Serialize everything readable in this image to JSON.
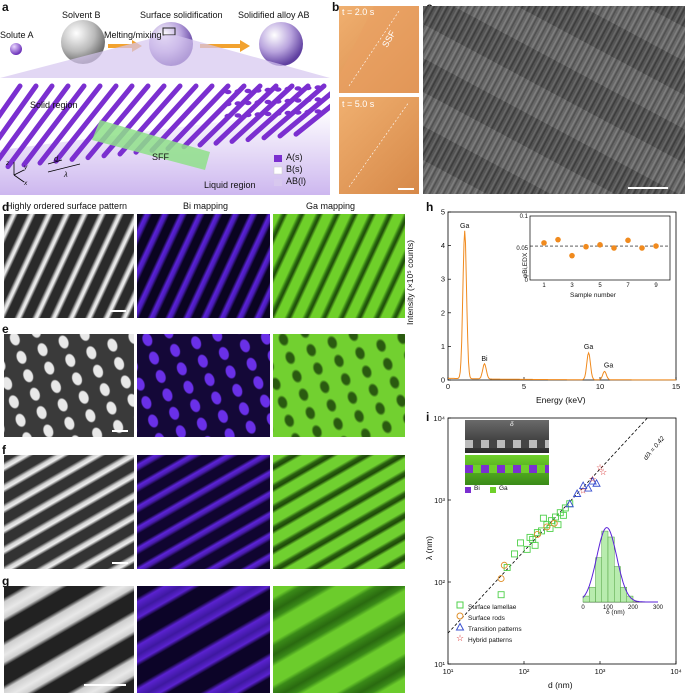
{
  "labels": {
    "a": "a",
    "b": "b",
    "c": "c",
    "d": "d",
    "e": "e",
    "f": "f",
    "g": "g",
    "h": "h",
    "i": "i"
  },
  "panel_a": {
    "solute": "Solute A",
    "solvent": "Solvent B",
    "melting": "Melting/mixing",
    "surface": "Surface solidification",
    "solidified": "Solidified alloy AB",
    "solid_region": "Solid region",
    "sff": "SFF",
    "liquid_region": "Liquid region",
    "legend": [
      "A(s)",
      "B(s)",
      "AB(l)"
    ],
    "d": "d",
    "lambda": "λ",
    "axes": {
      "z": "z",
      "y": "y",
      "x": "x"
    },
    "colors": {
      "purple": "#7b2fd0",
      "liquid": "#d8c8ef",
      "sff": "#8fe08a"
    }
  },
  "panel_b": {
    "t1": "t = 2.0 s",
    "t2": "t = 5.0 s",
    "ssf": "SSF",
    "color": "#e0955a"
  },
  "columns": {
    "col1": "Highly ordered surface pattern",
    "col2": "Bi mapping",
    "col3": "Ga mapping",
    "bi_color": "#5a22d8",
    "ga_color": "#6fd02a"
  },
  "panel_h": {
    "ylabel": "Intensity (×10⁵ counts)",
    "xlabel": "Energy (keV)",
    "peaks": [
      "Ga",
      "Bi",
      "Ga",
      "Ga"
    ],
    "inset_ylabel": "φBi,EDX",
    "inset_xlabel": "Sample number"
  },
  "panel_i": {
    "ylabel": "λ (nm)",
    "xlabel": "d (nm)",
    "ratio": "d/λ = 0.42",
    "bi": "Bi",
    "ga": "Ga",
    "delta": "δ",
    "hist_xlabel": "δ (nm)",
    "legend": [
      "Surface lamellae",
      "Surface rods",
      "Transition patterns",
      "Hybrid patterns"
    ]
  },
  "chart_data": [
    {
      "type": "line",
      "panel": "h",
      "xlabel": "Energy (keV)",
      "ylabel": "Intensity (×10⁵ counts)",
      "xlim": [
        0,
        15
      ],
      "ylim": [
        0,
        5
      ],
      "xticks": [
        0,
        5,
        10,
        15
      ],
      "yticks": [
        0,
        1,
        2,
        3,
        4,
        5
      ],
      "peaks": [
        {
          "label": "Ga",
          "x": 1.1,
          "y": 4.4
        },
        {
          "label": "Bi",
          "x": 2.4,
          "y": 0.45
        },
        {
          "label": "Ga",
          "x": 9.25,
          "y": 0.8
        },
        {
          "label": "Ga",
          "x": 10.3,
          "y": 0.25
        }
      ],
      "inset": {
        "type": "scatter",
        "xlabel": "Sample number",
        "ylabel": "φBi,EDX",
        "xlim": [
          0,
          10
        ],
        "ylim": [
          0,
          0.1
        ],
        "xticks": [
          1,
          3,
          5,
          7,
          9
        ],
        "yticks": [
          0,
          0.05,
          0.1
        ],
        "x": [
          1,
          2,
          3,
          4,
          5,
          6,
          7,
          8,
          9
        ],
        "y": [
          0.058,
          0.063,
          0.038,
          0.052,
          0.055,
          0.05,
          0.062,
          0.05,
          0.053
        ],
        "reference_line": 0.053
      }
    },
    {
      "type": "scatter",
      "panel": "i",
      "xlabel": "d (nm)",
      "ylabel": "λ (nm)",
      "xscale": "log",
      "yscale": "log",
      "xlim": [
        10,
        10000
      ],
      "ylim": [
        10,
        10000
      ],
      "fit": {
        "label": "d/λ = 0.42",
        "slope": 0.42
      },
      "series": [
        {
          "name": "Surface lamellae",
          "marker": "square",
          "color": "#4fd04a",
          "x": [
            50,
            60,
            75,
            90,
            110,
            130,
            150,
            170,
            200,
            230,
            260,
            300,
            350,
            400,
            120,
            180,
            220,
            280,
            330,
            140
          ],
          "y": [
            70,
            150,
            220,
            300,
            250,
            330,
            400,
            420,
            500,
            560,
            620,
            700,
            800,
            900,
            350,
            600,
            450,
            500,
            650,
            280
          ]
        },
        {
          "name": "Surface rods",
          "marker": "circle",
          "color": "#e0902a",
          "x": [
            50,
            55,
            150,
            200,
            250
          ],
          "y": [
            110,
            160,
            380,
            470,
            520
          ]
        },
        {
          "name": "Transition patterns",
          "marker": "triangle",
          "color": "#3a50d0",
          "x": [
            400,
            500,
            600,
            700,
            800,
            900
          ],
          "y": [
            900,
            1200,
            1500,
            1400,
            1700,
            1600
          ]
        },
        {
          "name": "Hybrid patterns",
          "marker": "star",
          "color": "#d83030",
          "x": [
            600,
            800,
            1000,
            1100
          ],
          "y": [
            1300,
            1800,
            2500,
            2200
          ]
        }
      ],
      "hist_inset": {
        "xlabel": "δ (nm)",
        "xticks": [
          0,
          100,
          200,
          300
        ],
        "bins": [
          0,
          25,
          50,
          75,
          100,
          125,
          150,
          175,
          200
        ],
        "counts": [
          2,
          5,
          15,
          24,
          22,
          12,
          5,
          2
        ]
      }
    }
  ]
}
